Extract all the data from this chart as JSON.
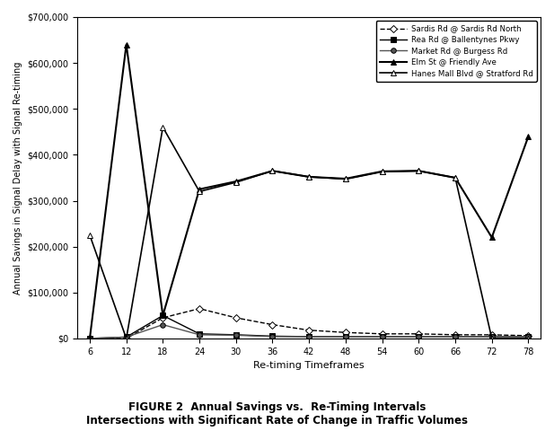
{
  "x": [
    6,
    12,
    18,
    24,
    30,
    36,
    42,
    48,
    54,
    60,
    66,
    72,
    78
  ],
  "series": [
    {
      "label": "Sardis Rd @ Sardis Rd North",
      "values": [
        0,
        0,
        45000,
        65000,
        45000,
        30000,
        18000,
        13000,
        10000,
        10000,
        8000,
        8000,
        6000
      ],
      "marker": "D",
      "linestyle": "--",
      "color": "black",
      "markersize": 4,
      "linewidth": 1.0,
      "markerfacecolor": "white"
    },
    {
      "label": "Rea Rd @ Ballentynes Pkwy",
      "values": [
        0,
        3000,
        50000,
        10000,
        8000,
        5000,
        4000,
        4000,
        4000,
        4000,
        4000,
        4000,
        4000
      ],
      "marker": "s",
      "linestyle": "-",
      "color": "black",
      "markersize": 4,
      "linewidth": 1.0,
      "markerfacecolor": "black"
    },
    {
      "label": "Market Rd @ Burgess Rd",
      "values": [
        0,
        3000,
        30000,
        8000,
        7000,
        4000,
        4000,
        4000,
        4000,
        4000,
        4000,
        4000,
        4000
      ],
      "marker": "o",
      "linestyle": "-",
      "color": "#555555",
      "markersize": 4,
      "linewidth": 1.0,
      "markerfacecolor": "#555555"
    },
    {
      "label": "Elm St @ Friendly Ave",
      "values": [
        0,
        640000,
        50000,
        325000,
        342000,
        365000,
        352000,
        348000,
        364000,
        365000,
        350000,
        220000,
        440000
      ],
      "marker": "^",
      "linestyle": "-",
      "color": "black",
      "markersize": 5,
      "linewidth": 1.5,
      "markerfacecolor": "black"
    },
    {
      "label": "Hanes Mall Blvd @ Stratford Rd",
      "values": [
        225000,
        0,
        460000,
        320000,
        340000,
        365000,
        352000,
        347000,
        363000,
        365000,
        350000,
        0,
        0
      ],
      "marker": "^",
      "linestyle": "-",
      "color": "black",
      "markersize": 5,
      "linewidth": 1.2,
      "markerfacecolor": "white"
    }
  ],
  "xlabel": "Re-timing Timeframes",
  "ylabel": "Annual Savings in Signal Delay with Signal Re-timing",
  "caption": "FIGURE 2  Annual Savings vs.  Re-Timing Intervals\nIntersections with Significant Rate of Change in Traffic Volumes",
  "ylim": [
    0,
    700000
  ],
  "xlim": [
    4,
    80
  ],
  "yticks": [
    0,
    100000,
    200000,
    300000,
    400000,
    500000,
    600000,
    700000
  ],
  "xticks": [
    6,
    12,
    18,
    24,
    30,
    36,
    42,
    48,
    54,
    60,
    66,
    72,
    78
  ],
  "background_color": "#ffffff"
}
